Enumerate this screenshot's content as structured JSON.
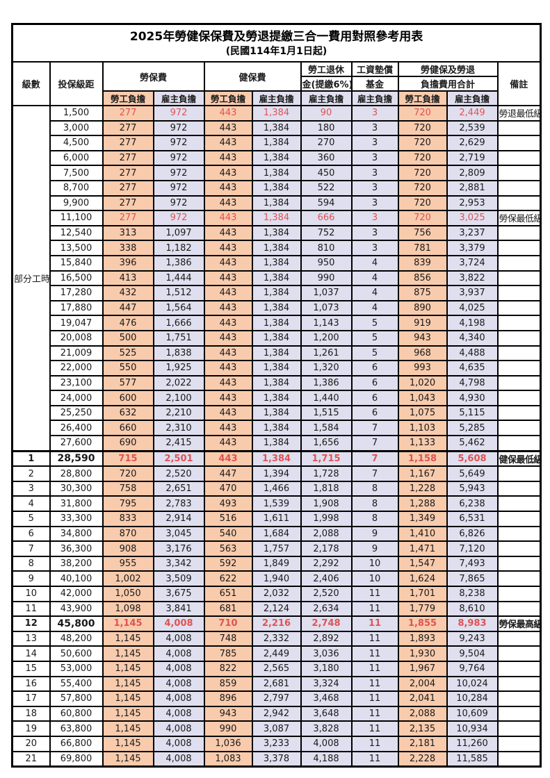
{
  "title": "2025年勞健保保費及勞退提繳三合一費用對照參考用表",
  "subtitle": "(民國114年1月1日起)",
  "colors": {
    "orange": "#F8CBAD",
    "lavender": "#DFDFEF",
    "red": "#E05252",
    "border": "#000000",
    "background": "#FFFFFF"
  },
  "table": {
    "header": {
      "level": "級數",
      "bracket": "投保級距",
      "labor_ins": "勞保費",
      "health_ins": "健保費",
      "pension_line1": "勞工退休",
      "pension_line2": "金(提繳6%)",
      "wage_fund_line1": "工資墊償",
      "wage_fund_line2": "基金",
      "total_line1": "勞健保及勞退",
      "total_line2": "負擔費用合計",
      "remark": "備註",
      "employee": "勞工負擔",
      "employer": "雇主負擔"
    },
    "part_time_label": "部分工時",
    "part_time_rowspan": 23,
    "rows": [
      {
        "lv": null,
        "br": "1,500",
        "v": [
          "277",
          "972",
          "443",
          "1,384",
          "90",
          "3",
          "720",
          "2,449"
        ],
        "note": "勞退最低級距",
        "red": true
      },
      {
        "lv": null,
        "br": "3,000",
        "v": [
          "277",
          "972",
          "443",
          "1,384",
          "180",
          "3",
          "720",
          "2,539"
        ]
      },
      {
        "lv": null,
        "br": "4,500",
        "v": [
          "277",
          "972",
          "443",
          "1,384",
          "270",
          "3",
          "720",
          "2,629"
        ]
      },
      {
        "lv": null,
        "br": "6,000",
        "v": [
          "277",
          "972",
          "443",
          "1,384",
          "360",
          "3",
          "720",
          "2,719"
        ]
      },
      {
        "lv": null,
        "br": "7,500",
        "v": [
          "277",
          "972",
          "443",
          "1,384",
          "450",
          "3",
          "720",
          "2,809"
        ]
      },
      {
        "lv": null,
        "br": "8,700",
        "v": [
          "277",
          "972",
          "443",
          "1,384",
          "522",
          "3",
          "720",
          "2,881"
        ]
      },
      {
        "lv": null,
        "br": "9,900",
        "v": [
          "277",
          "972",
          "443",
          "1,384",
          "594",
          "3",
          "720",
          "2,953"
        ]
      },
      {
        "lv": null,
        "br": "11,100",
        "v": [
          "277",
          "972",
          "443",
          "1,384",
          "666",
          "3",
          "720",
          "3,025"
        ],
        "note": "勞保最低級距",
        "red": true
      },
      {
        "lv": null,
        "br": "12,540",
        "v": [
          "313",
          "1,097",
          "443",
          "1,384",
          "752",
          "3",
          "756",
          "3,237"
        ]
      },
      {
        "lv": null,
        "br": "13,500",
        "v": [
          "338",
          "1,182",
          "443",
          "1,384",
          "810",
          "3",
          "781",
          "3,379"
        ]
      },
      {
        "lv": null,
        "br": "15,840",
        "v": [
          "396",
          "1,386",
          "443",
          "1,384",
          "950",
          "4",
          "839",
          "3,724"
        ]
      },
      {
        "lv": null,
        "br": "16,500",
        "v": [
          "413",
          "1,444",
          "443",
          "1,384",
          "990",
          "4",
          "856",
          "3,822"
        ]
      },
      {
        "lv": null,
        "br": "17,280",
        "v": [
          "432",
          "1,512",
          "443",
          "1,384",
          "1,037",
          "4",
          "875",
          "3,937"
        ]
      },
      {
        "lv": null,
        "br": "17,880",
        "v": [
          "447",
          "1,564",
          "443",
          "1,384",
          "1,073",
          "4",
          "890",
          "4,025"
        ]
      },
      {
        "lv": null,
        "br": "19,047",
        "v": [
          "476",
          "1,666",
          "443",
          "1,384",
          "1,143",
          "5",
          "919",
          "4,198"
        ]
      },
      {
        "lv": null,
        "br": "20,008",
        "v": [
          "500",
          "1,751",
          "443",
          "1,384",
          "1,200",
          "5",
          "943",
          "4,340"
        ]
      },
      {
        "lv": null,
        "br": "21,009",
        "v": [
          "525",
          "1,838",
          "443",
          "1,384",
          "1,261",
          "5",
          "968",
          "4,488"
        ]
      },
      {
        "lv": null,
        "br": "22,000",
        "v": [
          "550",
          "1,925",
          "443",
          "1,384",
          "1,320",
          "6",
          "993",
          "4,635"
        ]
      },
      {
        "lv": null,
        "br": "23,100",
        "v": [
          "577",
          "2,022",
          "443",
          "1,384",
          "1,386",
          "6",
          "1,020",
          "4,798"
        ]
      },
      {
        "lv": null,
        "br": "24,000",
        "v": [
          "600",
          "2,100",
          "443",
          "1,384",
          "1,440",
          "6",
          "1,043",
          "4,930"
        ]
      },
      {
        "lv": null,
        "br": "25,250",
        "v": [
          "632",
          "2,210",
          "443",
          "1,384",
          "1,515",
          "6",
          "1,075",
          "5,115"
        ]
      },
      {
        "lv": null,
        "br": "26,400",
        "v": [
          "660",
          "2,310",
          "443",
          "1,384",
          "1,584",
          "7",
          "1,103",
          "5,285"
        ]
      },
      {
        "lv": null,
        "br": "27,600",
        "v": [
          "690",
          "2,415",
          "443",
          "1,384",
          "1,656",
          "7",
          "1,133",
          "5,462"
        ]
      },
      {
        "lv": "1",
        "br": "28,590",
        "v": [
          "715",
          "2,501",
          "443",
          "1,384",
          "1,715",
          "7",
          "1,158",
          "5,608"
        ],
        "note": "健保最低級距",
        "red": true,
        "bold": true,
        "thick_top": true
      },
      {
        "lv": "2",
        "br": "28,800",
        "v": [
          "720",
          "2,520",
          "447",
          "1,394",
          "1,728",
          "7",
          "1,167",
          "5,649"
        ]
      },
      {
        "lv": "3",
        "br": "30,300",
        "v": [
          "758",
          "2,651",
          "470",
          "1,466",
          "1,818",
          "8",
          "1,228",
          "5,943"
        ]
      },
      {
        "lv": "4",
        "br": "31,800",
        "v": [
          "795",
          "2,783",
          "493",
          "1,539",
          "1,908",
          "8",
          "1,288",
          "6,238"
        ]
      },
      {
        "lv": "5",
        "br": "33,300",
        "v": [
          "833",
          "2,914",
          "516",
          "1,611",
          "1,998",
          "8",
          "1,349",
          "6,531"
        ]
      },
      {
        "lv": "6",
        "br": "34,800",
        "v": [
          "870",
          "3,045",
          "540",
          "1,684",
          "2,088",
          "9",
          "1,410",
          "6,826"
        ]
      },
      {
        "lv": "7",
        "br": "36,300",
        "v": [
          "908",
          "3,176",
          "563",
          "1,757",
          "2,178",
          "9",
          "1,471",
          "7,120"
        ]
      },
      {
        "lv": "8",
        "br": "38,200",
        "v": [
          "955",
          "3,342",
          "592",
          "1,849",
          "2,292",
          "10",
          "1,547",
          "7,493"
        ]
      },
      {
        "lv": "9",
        "br": "40,100",
        "v": [
          "1,002",
          "3,509",
          "622",
          "1,940",
          "2,406",
          "10",
          "1,624",
          "7,865"
        ]
      },
      {
        "lv": "10",
        "br": "42,000",
        "v": [
          "1,050",
          "3,675",
          "651",
          "2,032",
          "2,520",
          "11",
          "1,701",
          "8,238"
        ]
      },
      {
        "lv": "11",
        "br": "43,900",
        "v": [
          "1,098",
          "3,841",
          "681",
          "2,124",
          "2,634",
          "11",
          "1,779",
          "8,610"
        ]
      },
      {
        "lv": "12",
        "br": "45,800",
        "v": [
          "1,145",
          "4,008",
          "710",
          "2,216",
          "2,748",
          "11",
          "1,855",
          "8,983"
        ],
        "note": "勞保最高級距",
        "red": true,
        "bold": true
      },
      {
        "lv": "13",
        "br": "48,200",
        "v": [
          "1,145",
          "4,008",
          "748",
          "2,332",
          "2,892",
          "11",
          "1,893",
          "9,243"
        ]
      },
      {
        "lv": "14",
        "br": "50,600",
        "v": [
          "1,145",
          "4,008",
          "785",
          "2,449",
          "3,036",
          "11",
          "1,930",
          "9,504"
        ]
      },
      {
        "lv": "15",
        "br": "53,000",
        "v": [
          "1,145",
          "4,008",
          "822",
          "2,565",
          "3,180",
          "11",
          "1,967",
          "9,764"
        ]
      },
      {
        "lv": "16",
        "br": "55,400",
        "v": [
          "1,145",
          "4,008",
          "859",
          "2,681",
          "3,324",
          "11",
          "2,004",
          "10,024"
        ]
      },
      {
        "lv": "17",
        "br": "57,800",
        "v": [
          "1,145",
          "4,008",
          "896",
          "2,797",
          "3,468",
          "11",
          "2,041",
          "10,284"
        ]
      },
      {
        "lv": "18",
        "br": "60,800",
        "v": [
          "1,145",
          "4,008",
          "943",
          "2,942",
          "3,648",
          "11",
          "2,088",
          "10,609"
        ]
      },
      {
        "lv": "19",
        "br": "63,800",
        "v": [
          "1,145",
          "4,008",
          "990",
          "3,087",
          "3,828",
          "11",
          "2,135",
          "10,934"
        ]
      },
      {
        "lv": "20",
        "br": "66,800",
        "v": [
          "1,145",
          "4,008",
          "1,036",
          "3,233",
          "4,008",
          "11",
          "2,181",
          "11,260"
        ]
      },
      {
        "lv": "21",
        "br": "69,800",
        "v": [
          "1,145",
          "4,008",
          "1,083",
          "3,378",
          "4,188",
          "11",
          "2,228",
          "11,585"
        ]
      }
    ]
  }
}
